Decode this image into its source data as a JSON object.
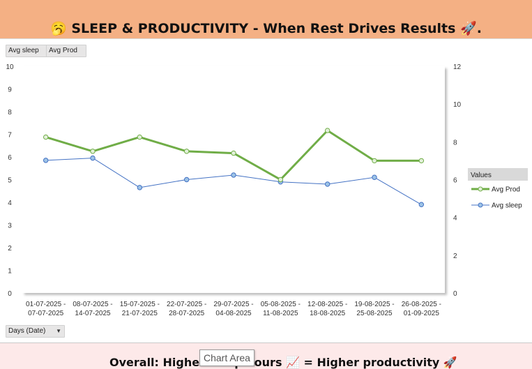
{
  "banner": {
    "title": "🥱 SLEEP & PRODUCTIVITY - When Rest Drives Results 🚀."
  },
  "field_buttons": {
    "sleep": "Avg sleep",
    "prod": "Avg Prod",
    "days": "Days (Date)"
  },
  "footer": {
    "text": "Overall: Higher sleep hours 📈 = Higher productivity 🚀"
  },
  "tooltip": "Chart Area",
  "colors": {
    "prod": "#70ad47",
    "sleep": "#4472c4",
    "banner": "#f4b084",
    "footer": "#fde9e9"
  },
  "chart_data": {
    "type": "line",
    "categories": [
      [
        "01-07-2025 -",
        "07-07-2025"
      ],
      [
        "08-07-2025 -",
        "14-07-2025"
      ],
      [
        "15-07-2025 -",
        "21-07-2025"
      ],
      [
        "22-07-2025 -",
        "28-07-2025"
      ],
      [
        "29-07-2025 -",
        "04-08-2025"
      ],
      [
        "05-08-2025 -",
        "11-08-2025"
      ],
      [
        "12-08-2025 -",
        "18-08-2025"
      ],
      [
        "19-08-2025 -",
        "25-08-2025"
      ],
      [
        "26-08-2025 -",
        "01-09-2025"
      ]
    ],
    "series": [
      {
        "name": "Avg Prod",
        "axis": "right",
        "values": [
          8.25,
          7.5,
          8.25,
          7.5,
          7.4,
          6.0,
          8.6,
          7.0,
          7.0
        ]
      },
      {
        "name": "Avg sleep",
        "axis": "left",
        "values": [
          5.85,
          5.95,
          4.65,
          5.0,
          5.2,
          4.9,
          4.8,
          5.1,
          3.9
        ]
      }
    ],
    "left_axis": {
      "min": 0,
      "max": 10,
      "ticks": [
        0,
        1,
        2,
        3,
        4,
        5,
        6,
        7,
        8,
        9,
        10
      ]
    },
    "right_axis": {
      "min": 0,
      "max": 12,
      "ticks": [
        0,
        2,
        4,
        6,
        8,
        10,
        12
      ]
    },
    "legend": {
      "title": "Values",
      "position": "right"
    },
    "grid": false
  }
}
